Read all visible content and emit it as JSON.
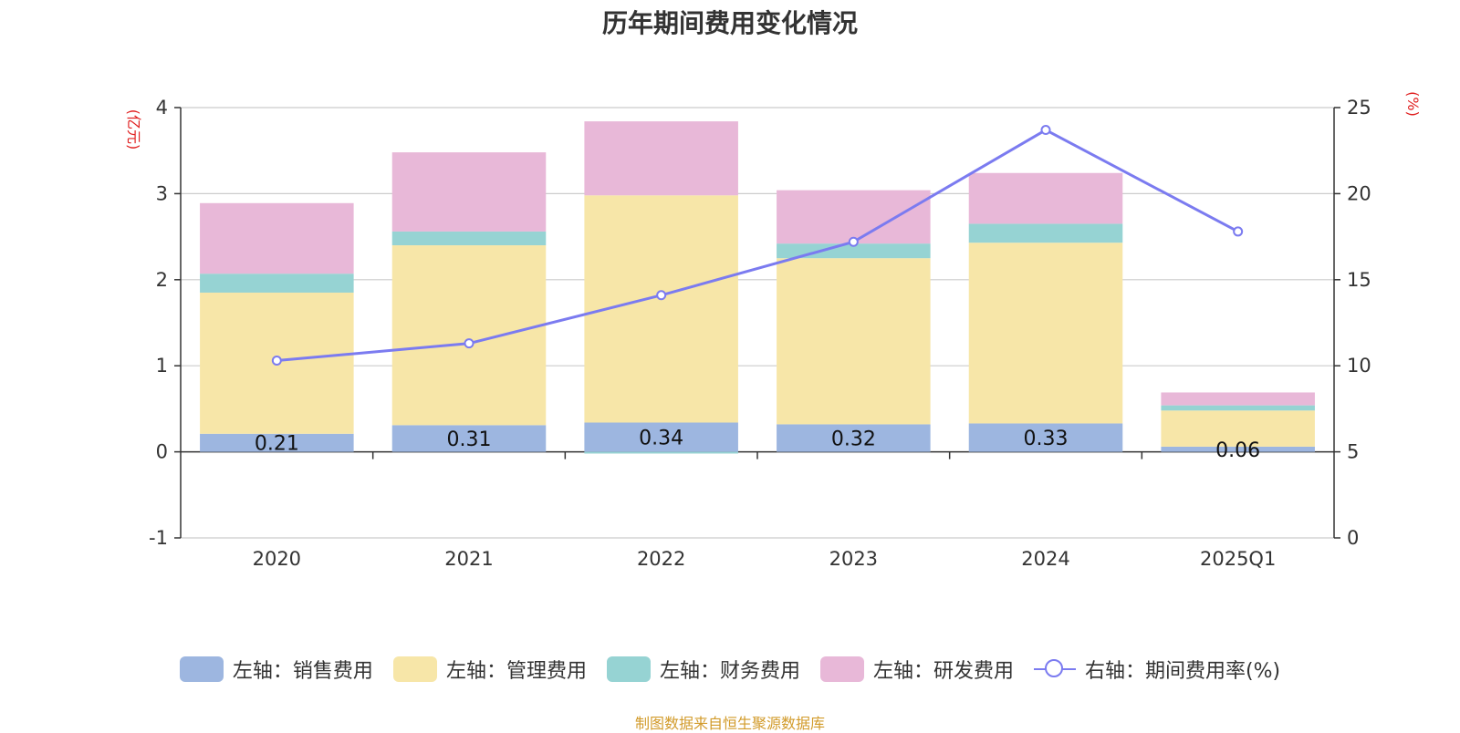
{
  "chart_data": {
    "type": "bar",
    "title": "历年期间费用变化情况",
    "categories": [
      "2020",
      "2021",
      "2022",
      "2023",
      "2024",
      "2025Q1"
    ],
    "series": [
      {
        "name": "左轴：销售费用",
        "axis": "left",
        "kind": "bar",
        "color": "#9db6e0",
        "values": [
          0.21,
          0.31,
          0.34,
          0.32,
          0.33,
          0.06
        ]
      },
      {
        "name": "左轴：管理费用",
        "axis": "left",
        "kind": "bar",
        "color": "#f7e6a8",
        "values": [
          1.64,
          2.09,
          2.64,
          1.93,
          2.1,
          0.42
        ]
      },
      {
        "name": "左轴：财务费用",
        "axis": "left",
        "kind": "bar",
        "color": "#96d3d3",
        "values": [
          0.22,
          0.16,
          -0.02,
          0.17,
          0.22,
          0.06
        ]
      },
      {
        "name": "左轴：研发费用",
        "axis": "left",
        "kind": "bar",
        "color": "#e8b8d8",
        "values": [
          0.82,
          0.92,
          0.86,
          0.62,
          0.59,
          0.15
        ]
      },
      {
        "name": "右轴：期间费用率(%)",
        "axis": "right",
        "kind": "line",
        "color": "#7b7bf0",
        "values": [
          10.3,
          11.3,
          14.1,
          17.2,
          23.7,
          17.8
        ]
      }
    ],
    "bar_labels": [
      "0.21",
      "0.31",
      "0.34",
      "0.32",
      "0.33",
      "0.06"
    ],
    "y_left": {
      "unit": "(亿元)",
      "ylim": [
        -1,
        4
      ],
      "ticks": [
        "-1",
        "0",
        "1",
        "2",
        "3",
        "4"
      ],
      "tick_values": [
        -1,
        0,
        1,
        2,
        3,
        4
      ]
    },
    "y_right": {
      "unit": "(%)",
      "ylim": [
        0,
        25
      ],
      "ticks": [
        "0",
        "5",
        "10",
        "15",
        "20",
        "25"
      ],
      "tick_values": [
        0,
        5,
        10,
        15,
        20,
        25
      ]
    },
    "stacked": true,
    "grid": true,
    "legend_position": "bottom"
  },
  "source_note": "制图数据来自恒生聚源数据库"
}
